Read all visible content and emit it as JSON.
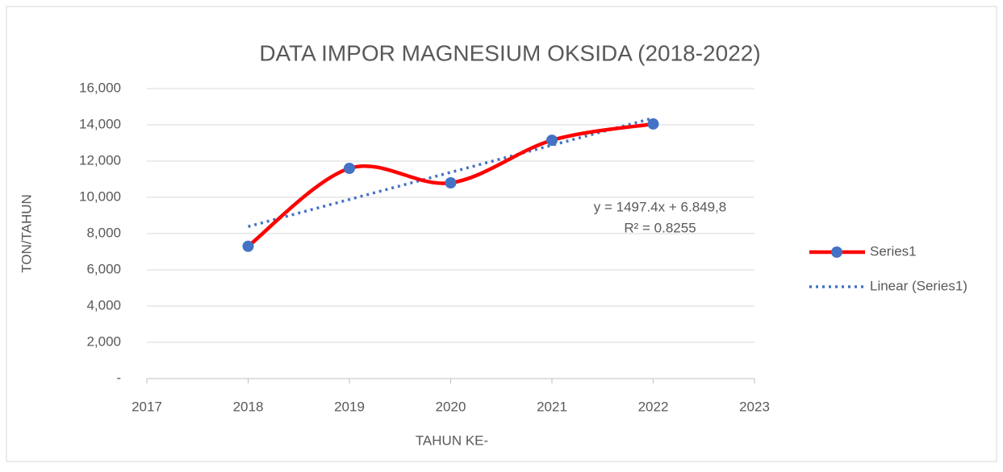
{
  "chart_data": {
    "type": "line",
    "title": "DATA IMPOR MAGNESIUM OKSIDA (2018-2022)",
    "x_label": "TAHUN KE-",
    "y_label": "TON/TAHUN",
    "x": [
      2018,
      2019,
      2020,
      2021,
      2022
    ],
    "series": [
      {
        "name": "Series1",
        "color": "#ff0000",
        "marker_color": "#4472c4",
        "smooth": true,
        "values": [
          7300,
          11600,
          10800,
          13150,
          14050
        ]
      },
      {
        "name": "Linear (Series1)",
        "color": "#4472c4",
        "dotted": true,
        "values": [
          8386,
          9883,
          11380,
          12877,
          14374
        ]
      }
    ],
    "annotations": [
      "y = 1497.4x + 6.849,8",
      "R² = 0.8255"
    ],
    "xlim": [
      2017,
      2023
    ],
    "xticks": [
      2017,
      2018,
      2019,
      2020,
      2021,
      2022,
      2023
    ],
    "ylim": [
      0,
      16000
    ],
    "yticks": [
      {
        "value": 0,
        "label": "-"
      },
      {
        "value": 2000,
        "label": "2,000"
      },
      {
        "value": 4000,
        "label": "4,000"
      },
      {
        "value": 6000,
        "label": "6,000"
      },
      {
        "value": 8000,
        "label": "8,000"
      },
      {
        "value": 10000,
        "label": "10,000"
      },
      {
        "value": 12000,
        "label": "12,000"
      },
      {
        "value": 14000,
        "label": "14,000"
      },
      {
        "value": 16000,
        "label": "16,000"
      }
    ],
    "grid": true,
    "legend": "right"
  }
}
